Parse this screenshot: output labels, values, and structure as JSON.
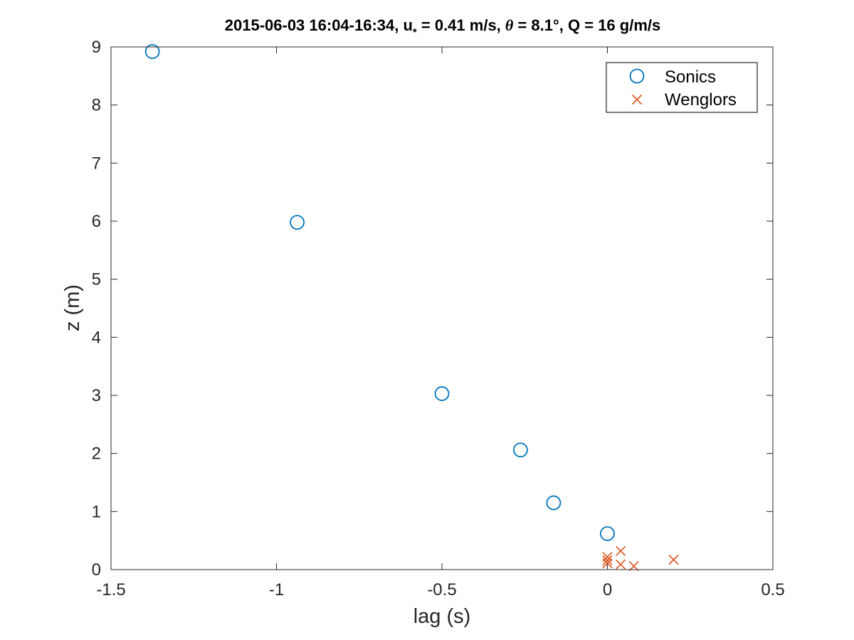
{
  "chart_data": {
    "type": "scatter",
    "title": {
      "prefix": "2015-06-03 16:04-16:34, u",
      "subscript": "*",
      "mid1": " = 0.41 m/s, ",
      "theta": "θ",
      "mid2": " = 8.1°, Q = 16 g/m/s"
    },
    "xlabel": "lag (s)",
    "ylabel": "z (m)",
    "xlim": [
      -1.5,
      0.5
    ],
    "ylim": [
      0,
      9
    ],
    "xticks": [
      -1.5,
      -1,
      -0.5,
      0,
      0.5
    ],
    "xtick_labels": [
      "-1.5",
      "-1",
      "-0.5",
      "0",
      "0.5"
    ],
    "yticks": [
      0,
      1,
      2,
      3,
      4,
      5,
      6,
      7,
      8,
      9
    ],
    "ytick_labels": [
      "0",
      "1",
      "2",
      "3",
      "4",
      "5",
      "6",
      "7",
      "8",
      "9"
    ],
    "grid": false,
    "legend_position": "top-right",
    "series": [
      {
        "name": "Sonics",
        "marker": "circle",
        "color": "#0072BD",
        "points": [
          {
            "x": -1.375,
            "y": 8.92
          },
          {
            "x": -0.9375,
            "y": 5.98
          },
          {
            "x": -0.5,
            "y": 3.03
          },
          {
            "x": -0.2625,
            "y": 2.06
          },
          {
            "x": -0.1625,
            "y": 1.15
          },
          {
            "x": 0.0,
            "y": 0.62
          }
        ]
      },
      {
        "name": "Wenglors",
        "marker": "x",
        "color": "#D95319",
        "points": [
          {
            "x": 0.0,
            "y": 0.22
          },
          {
            "x": 0.0,
            "y": 0.16
          },
          {
            "x": 0.0,
            "y": 0.11
          },
          {
            "x": 0.04,
            "y": 0.32
          },
          {
            "x": 0.04,
            "y": 0.09
          },
          {
            "x": 0.08,
            "y": 0.06
          },
          {
            "x": 0.2,
            "y": 0.17
          }
        ]
      }
    ]
  }
}
